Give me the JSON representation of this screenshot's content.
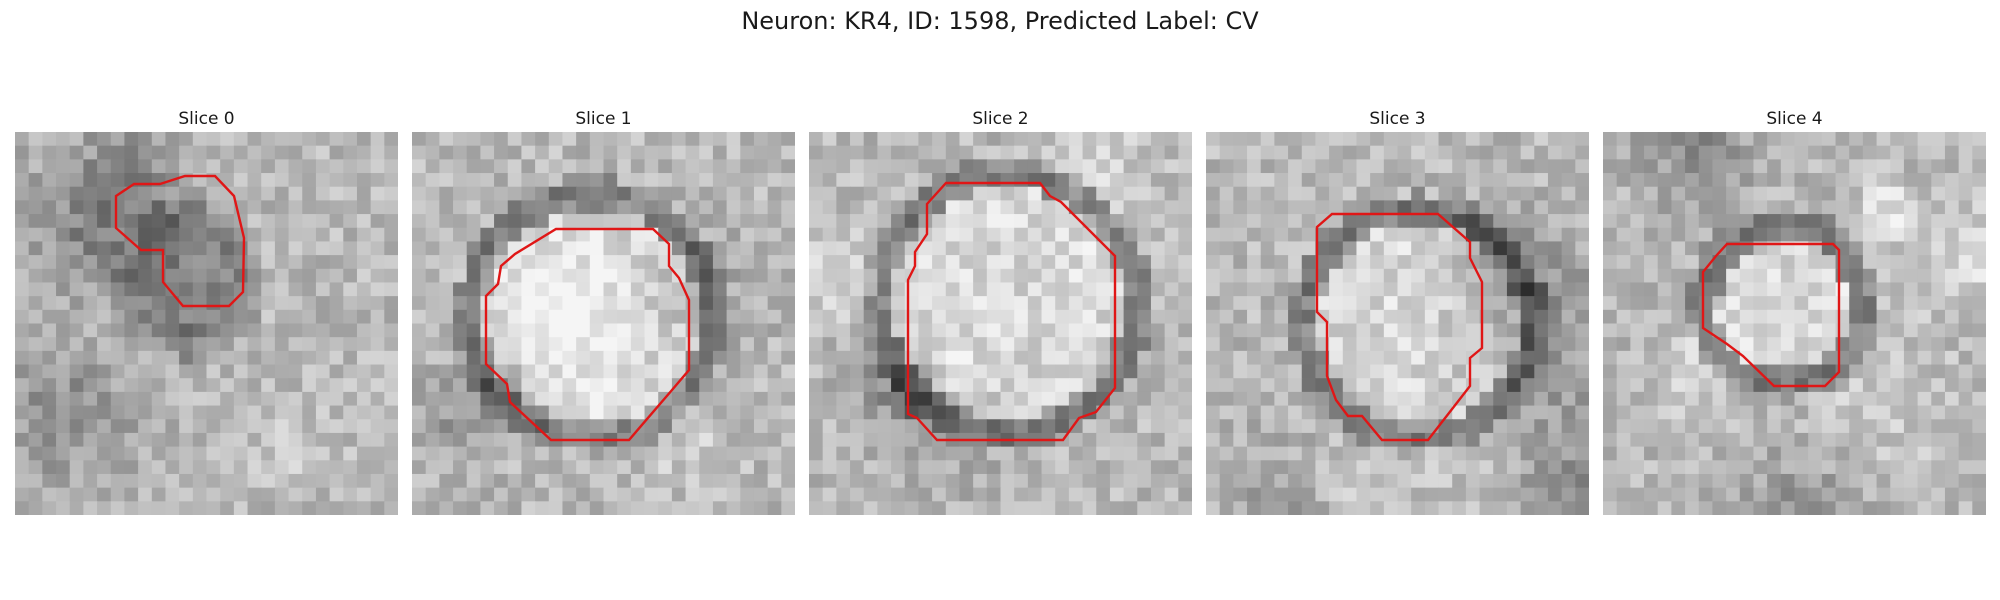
{
  "figure": {
    "title": "Neuron: KR4, ID: 1598, Predicted Label: CV"
  },
  "colors": {
    "contour": "#e01616",
    "background": "#ffffff"
  },
  "slices": [
    {
      "title": "Slice 0",
      "center": [
        0.45,
        0.38
      ],
      "radius": 0.16,
      "interior": "dark",
      "seed": 11
    },
    {
      "title": "Slice 1",
      "center": [
        0.47,
        0.48
      ],
      "radius": 0.28,
      "interior": "bright",
      "seed": 23
    },
    {
      "title": "Slice 2",
      "center": [
        0.52,
        0.45
      ],
      "radius": 0.3,
      "interior": "bright",
      "seed": 37
    },
    {
      "title": "Slice 3",
      "center": [
        0.55,
        0.5
      ],
      "radius": 0.26,
      "interior": "bright",
      "seed": 41
    },
    {
      "title": "Slice 4",
      "center": [
        0.47,
        0.45
      ],
      "radius": 0.17,
      "interior": "bright",
      "seed": 59
    }
  ]
}
